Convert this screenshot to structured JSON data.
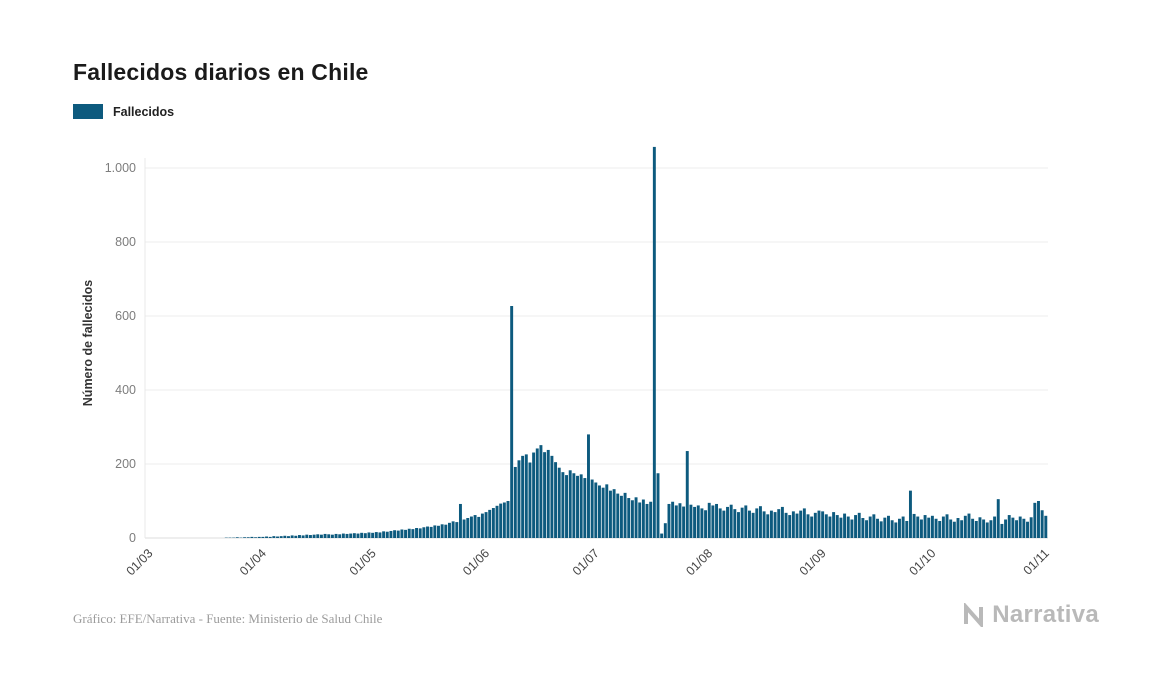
{
  "header": {
    "title": "Fallecidos diarios en Chile"
  },
  "legend": {
    "label": "Fallecidos",
    "color": "#0d5a7e"
  },
  "footer": {
    "credit": "Gráfico: EFE/Narrativa - Fuente: Ministerio de Salud Chile",
    "brand": "Narrativa"
  },
  "chart_data": {
    "type": "bar",
    "title": "Fallecidos diarios en Chile",
    "series_name": "Fallecidos",
    "bar_color": "#0d5a7e",
    "grid": true,
    "legend_position": "top-left",
    "ylabel": "Número de fallecidos",
    "xlabel": "",
    "ylim": [
      0,
      1100
    ],
    "yticks": [
      0,
      200,
      400,
      600,
      800,
      1000
    ],
    "ytick_labels": [
      "0",
      "200",
      "400",
      "600",
      "800",
      "1.000"
    ],
    "x_tick_labels": [
      "01/03",
      "01/04",
      "01/05",
      "01/06",
      "01/07",
      "01/08",
      "01/09",
      "01/10",
      "01/11"
    ],
    "x_tick_indices": [
      0,
      31,
      61,
      92,
      122,
      153,
      184,
      214,
      245
    ],
    "x_start": "01/03",
    "x_end": "01/11",
    "values": [
      0,
      0,
      0,
      0,
      0,
      0,
      0,
      0,
      0,
      0,
      0,
      0,
      0,
      0,
      0,
      0,
      0,
      0,
      0,
      0,
      0,
      1,
      1,
      1,
      2,
      1,
      2,
      2,
      3,
      2,
      3,
      3,
      4,
      3,
      5,
      4,
      5,
      6,
      5,
      7,
      6,
      8,
      7,
      9,
      8,
      9,
      10,
      9,
      11,
      10,
      9,
      11,
      10,
      12,
      11,
      12,
      13,
      12,
      14,
      13,
      15,
      14,
      16,
      15,
      18,
      17,
      19,
      21,
      20,
      23,
      22,
      25,
      24,
      27,
      26,
      29,
      31,
      30,
      34,
      33,
      37,
      36,
      41,
      45,
      43,
      92,
      50,
      54,
      58,
      62,
      57,
      66,
      70,
      76,
      81,
      87,
      93,
      96,
      100,
      627,
      192,
      210,
      222,
      226,
      204,
      231,
      242,
      251,
      232,
      238,
      222,
      205,
      190,
      178,
      170,
      183,
      175,
      168,
      172,
      162,
      280,
      158,
      150,
      142,
      136,
      145,
      128,
      132,
      120,
      114,
      122,
      108,
      102,
      110,
      96,
      104,
      92,
      98,
      1057,
      175,
      12,
      40,
      92,
      98,
      88,
      94,
      85,
      235,
      90,
      84,
      88,
      80,
      75,
      95,
      88,
      92,
      80,
      74,
      84,
      90,
      78,
      70,
      82,
      88,
      74,
      68,
      80,
      86,
      72,
      64,
      74,
      70,
      78,
      84,
      68,
      62,
      72,
      66,
      74,
      80,
      64,
      58,
      68,
      74,
      72,
      64,
      58,
      70,
      62,
      55,
      66,
      58,
      50,
      62,
      68,
      54,
      48,
      58,
      64,
      52,
      45,
      55,
      60,
      48,
      42,
      52,
      58,
      46,
      128,
      65,
      58,
      50,
      62,
      55,
      60,
      52,
      46,
      58,
      64,
      50,
      44,
      54,
      48,
      60,
      66,
      52,
      46,
      56,
      50,
      42,
      48,
      58,
      105,
      38,
      50,
      62,
      55,
      48,
      58,
      52,
      44,
      56,
      95,
      100,
      75,
      60
    ]
  }
}
